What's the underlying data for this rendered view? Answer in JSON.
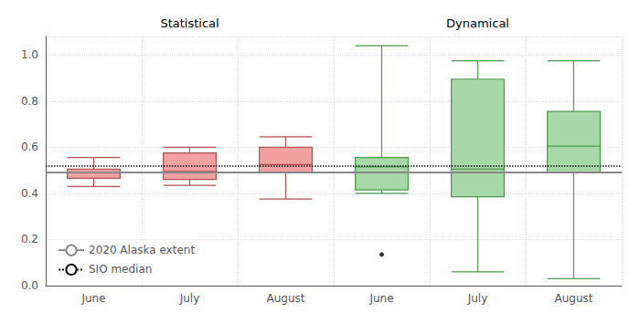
{
  "chart_data": {
    "type": "boxplot",
    "groups": [
      {
        "label": "Statistical",
        "color": "#f2a0a0",
        "edge_color": "#b05050",
        "categories": [
          "June",
          "July",
          "August"
        ],
        "boxes": [
          {
            "min": 0.43,
            "q1": 0.465,
            "median": 0.49,
            "q3": 0.505,
            "max": 0.555,
            "outliers": []
          },
          {
            "min": 0.435,
            "q1": 0.46,
            "median": 0.495,
            "q3": 0.575,
            "max": 0.6,
            "outliers": []
          },
          {
            "min": 0.375,
            "q1": 0.49,
            "median": 0.525,
            "q3": 0.6,
            "max": 0.645,
            "outliers": []
          }
        ]
      },
      {
        "label": "Dynamical",
        "color": "#a8d8a8",
        "edge_color": "#4a9a4a",
        "categories": [
          "June",
          "July",
          "August"
        ],
        "boxes": [
          {
            "min": 0.4,
            "q1": 0.415,
            "median": 0.515,
            "q3": 0.555,
            "max": 1.04,
            "outliers": [
              0.135
            ]
          },
          {
            "min": 0.06,
            "q1": 0.385,
            "median": 0.505,
            "q3": 0.895,
            "max": 0.975,
            "outliers": []
          },
          {
            "min": 0.03,
            "q1": 0.49,
            "median": 0.605,
            "q3": 0.755,
            "max": 0.975,
            "outliers": []
          }
        ]
      }
    ],
    "outlier_color": "#000000",
    "reference_lines": [
      {
        "name": "2020 Alaska extent",
        "value": 0.49,
        "color": "#888888",
        "line_style": "solid"
      },
      {
        "name": "SIO median",
        "value": 0.515,
        "color": "#111111",
        "line_style": "dotted"
      }
    ],
    "ylim": [
      0,
      1.08
    ],
    "yticks": [
      {
        "value": 0,
        "label": "0.0"
      },
      0.2,
      0.4,
      0.6,
      0.8,
      {
        "value": 1.0,
        "label": "1.0"
      }
    ],
    "grid": true,
    "legend": "lower left"
  }
}
